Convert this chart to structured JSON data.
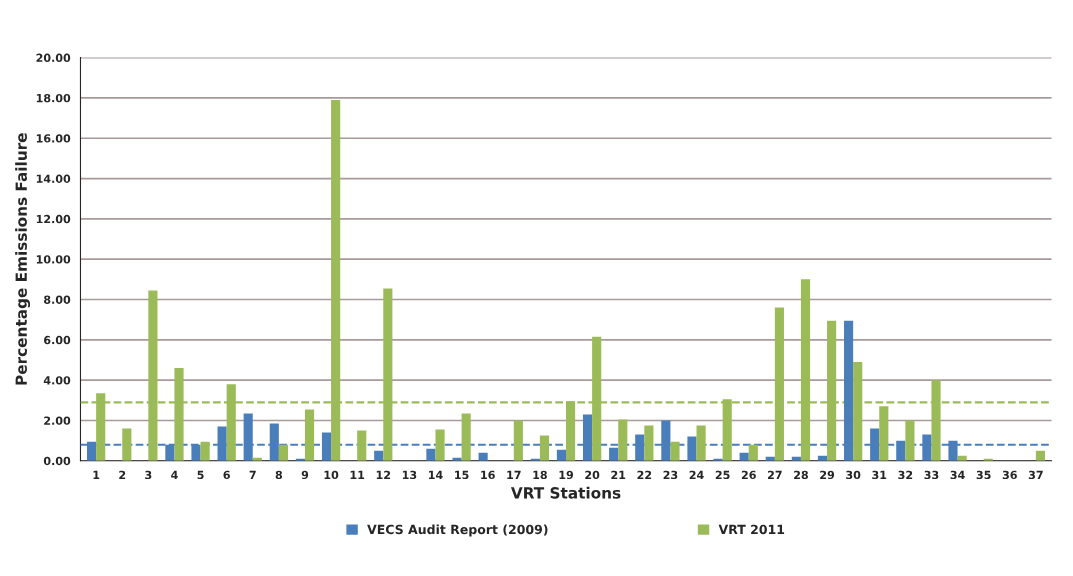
{
  "chart_data": {
    "type": "bar",
    "xlabel": "VRT Stations",
    "ylabel": "Percentage Emissions Failure",
    "categories": [
      "1",
      "2",
      "3",
      "4",
      "5",
      "6",
      "7",
      "8",
      "9",
      "10",
      "11",
      "12",
      "13",
      "14",
      "15",
      "16",
      "17",
      "18",
      "19",
      "20",
      "21",
      "22",
      "23",
      "24",
      "25",
      "26",
      "27",
      "28",
      "29",
      "30",
      "31",
      "32",
      "33",
      "34",
      "35",
      "36",
      "37"
    ],
    "series": [
      {
        "name": "VECS Audit Report (2009)",
        "color": "#4a7ebb",
        "values": [
          0.95,
          0,
          0,
          0.8,
          0.8,
          1.7,
          2.35,
          1.85,
          0.1,
          1.4,
          0,
          0.5,
          0,
          0.6,
          0.15,
          0.4,
          0,
          0.1,
          0.55,
          2.3,
          0.65,
          1.3,
          2.0,
          1.2,
          0.1,
          0.4,
          0.2,
          0.2,
          0.25,
          6.95,
          1.6,
          1.0,
          1.3,
          1.0,
          0,
          0,
          0
        ]
      },
      {
        "name": "VRT 2011",
        "color": "#9bbb59",
        "values": [
          3.35,
          1.6,
          8.45,
          4.6,
          0.95,
          3.8,
          0.15,
          0.8,
          2.55,
          17.9,
          1.5,
          8.55,
          0,
          1.55,
          2.35,
          0,
          2.0,
          1.25,
          2.95,
          6.15,
          2.05,
          1.75,
          0.95,
          1.75,
          3.05,
          0.8,
          7.6,
          9.0,
          6.95,
          4.9,
          2.7,
          2.0,
          4.0,
          0.25,
          0.1,
          0,
          0.5
        ]
      }
    ],
    "ylim": [
      0,
      20
    ],
    "yticks": [
      {
        "value": 0,
        "label": "0.00"
      },
      {
        "value": 2,
        "label": "2.00"
      },
      {
        "value": 4,
        "label": "4.00"
      },
      {
        "value": 6,
        "label": "6.00"
      },
      {
        "value": 8,
        "label": "8.00"
      },
      {
        "value": 10,
        "label": "10.00"
      },
      {
        "value": 12,
        "label": "12.00"
      },
      {
        "value": 14,
        "label": "14.00"
      },
      {
        "value": 16,
        "label": "16.00"
      },
      {
        "value": 18,
        "label": "18.00"
      },
      {
        "value": 20,
        "label": "20.00"
      }
    ],
    "ref_lines": [
      {
        "axis": "y",
        "value": 0.8,
        "color": "#4a7ebb",
        "line_style": "dashed"
      },
      {
        "axis": "y",
        "value": 2.9,
        "color": "#9bbb59",
        "line_style": "dashed"
      }
    ],
    "grid": "y",
    "legend": "bottom"
  }
}
